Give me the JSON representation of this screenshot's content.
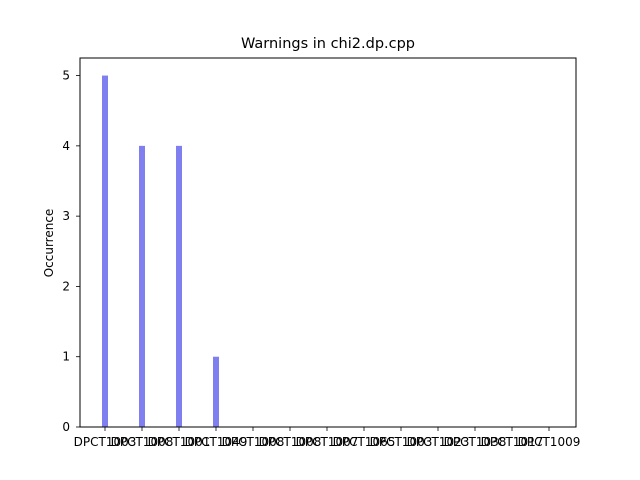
{
  "chart_data": {
    "type": "bar",
    "title": "Warnings in chi2.dp.cpp",
    "xlabel": "",
    "ylabel": "Occurrence",
    "categories": [
      "DPCT1003",
      "DPCT1008",
      "DPCT1001",
      "DPCT1049",
      "DPCT1008",
      "DPCT1008",
      "DPCT1007",
      "DPCT1065",
      "DPCT1003",
      "DPCT1023",
      "DPCT1038",
      "DPCT1017",
      "DPCT1009"
    ],
    "values": [
      5,
      4,
      4,
      1,
      0,
      0,
      0,
      0,
      0,
      0,
      0,
      0,
      0
    ],
    "ylim": [
      0,
      5.25
    ],
    "yticks": [
      0,
      1,
      2,
      3,
      4,
      5
    ],
    "grid": false,
    "bar_color": "#7f7ff0"
  }
}
